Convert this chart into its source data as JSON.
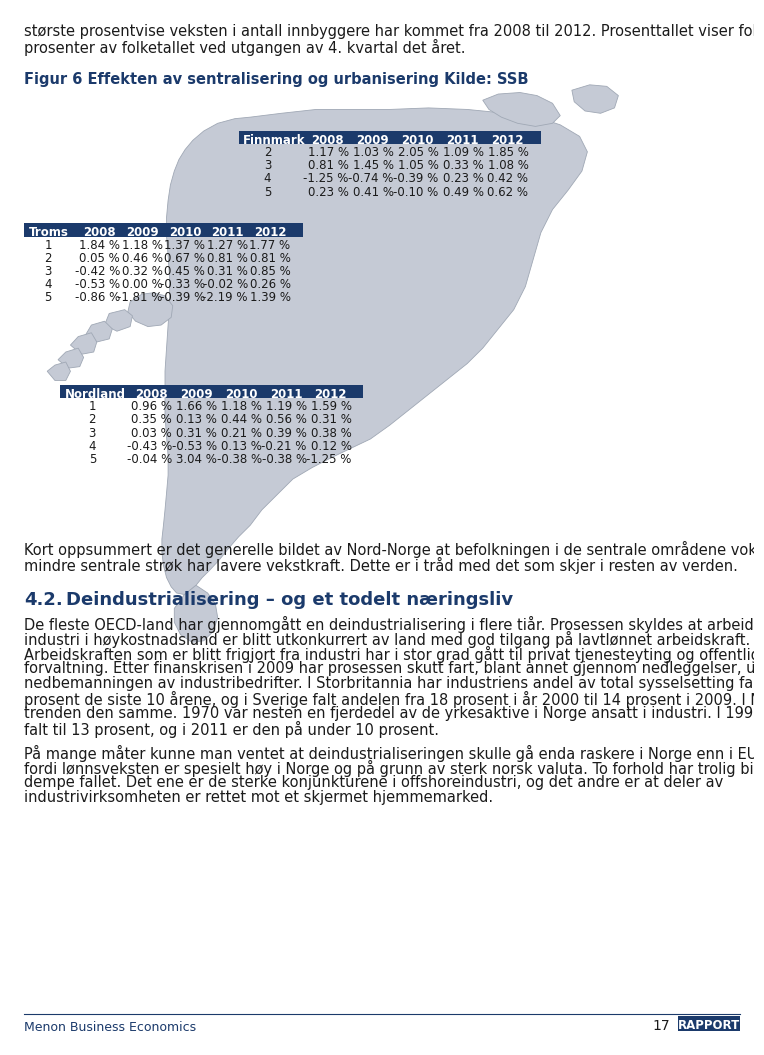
{
  "page_text_top_line1": "største prosentvise veksten i antall innbyggere har kommet fra 2008 til 2012. Prosenttallet viser folkevekst i",
  "page_text_top_line2": "prosenter av folketallet ved utgangen av 4. kvartal det året.",
  "fig_label": "Figur 6 Effekten av sentralisering og urbanisering Kilde: SSB",
  "finnmark_header": [
    "Finnmark",
    "2008",
    "2009",
    "2010",
    "2011",
    "2012"
  ],
  "finnmark_data": [
    [
      "2",
      "1.17 %",
      "1.03 %",
      "2.05 %",
      "1.09 %",
      "1.85 %"
    ],
    [
      "3",
      "0.81 %",
      "1.45 %",
      "1.05 %",
      "0.33 %",
      "1.08 %"
    ],
    [
      "4",
      "-1.25 %",
      "-0.74 %",
      "-0.39 %",
      "0.23 %",
      "0.42 %"
    ],
    [
      "5",
      "0.23 %",
      "0.41 %",
      "-0.10 %",
      "0.49 %",
      "0.62 %"
    ]
  ],
  "troms_header": [
    "Troms",
    "2008",
    "2009",
    "2010",
    "2011",
    "2012"
  ],
  "troms_data": [
    [
      "1",
      "1.84 %",
      "1.18 %",
      "1.37 %",
      "1.27 %",
      "1.77 %"
    ],
    [
      "2",
      "0.05 %",
      "0.46 %",
      "0.67 %",
      "0.81 %",
      "0.81 %"
    ],
    [
      "3",
      "-0.42 %",
      "0.32 %",
      "0.45 %",
      "0.31 %",
      "0.85 %"
    ],
    [
      "4",
      "-0.53 %",
      "0.00 %",
      "-0.33 %",
      "-0.02 %",
      "0.26 %"
    ],
    [
      "5",
      "-0.86 %",
      "-1.81 %",
      "-0.39 %",
      "-2.19 %",
      "1.39 %"
    ]
  ],
  "nordland_header": [
    "Nordland",
    "2008",
    "2009",
    "2010",
    "2011",
    "2012"
  ],
  "nordland_data": [
    [
      "1",
      "0.96 %",
      "1.66 %",
      "1.18 %",
      "1.19 %",
      "1.59 %"
    ],
    [
      "2",
      "0.35 %",
      "0.13 %",
      "0.44 %",
      "0.56 %",
      "0.31 %"
    ],
    [
      "3",
      "0.03 %",
      "0.31 %",
      "0.21 %",
      "0.39 %",
      "0.38 %"
    ],
    [
      "4",
      "-0.43 %",
      "-0.53 %",
      "0.13 %",
      "-0.21 %",
      "0.12 %"
    ],
    [
      "5",
      "-0.04 %",
      "3.04 %",
      "-0.38 %",
      "-0.38 %",
      "-1.25 %"
    ]
  ],
  "summary_line1": "Kort oppsummert er det generelle bildet av Nord-Norge at befolkningen i de sentrale områdene vokser, mens",
  "summary_line2": "mindre sentrale strøk har lavere vekstkraft. Dette er i tråd med det som skjer i resten av verden.",
  "section_num": "4.2.",
  "section_title": "Deindustrialisering – og et todelt næringsliv",
  "para1_lines": [
    "De fleste OECD-land har gjennomgått en deindustrialisering i flere tiår. Prosessen skyldes at arbeidsintensiv",
    "industri i høykostnadsland er blitt utkonkurrert av land med god tilgang på lavtlønnet arbeidskraft.",
    "Arbeidskraften som er blitt frigjort fra industri har i stor grad gått til privat tjenesteyting og offentlig",
    "forvaltning. Etter finanskrisen i 2009 har prosessen skutt fart, blant annet gjennom nedleggelser, utflyttinger og",
    "nedbemanningen av industribedrifter. I Storbritannia har industriens andel av total sysselsetting falt med 50",
    "prosent de siste 10 årene, og i Sverige falt andelen fra 18 prosent i år 2000 til 14 prosent i 2009. I Norge er",
    "trenden den samme. 1970 var nesten en fjerdedel av de yrkesaktive i Norge ansatt i industri. I 1995 var andelen",
    "falt til 13 prosent, og i 2011 er den på under 10 prosent."
  ],
  "para2_lines": [
    "På mange måter kunne man ventet at deindustrialiseringen skulle gå enda raskere i Norge enn i EU-landene,",
    "fordi lønnsveksten er spesielt høy i Norge og på grunn av sterk norsk valuta. To forhold har trolig bidratt til å",
    "dempe fallet. Det ene er de sterke konjunkturene i offshoreindustri, og det andre er at deler av",
    "industrivirksomheten er rettet mot et skjermet hjemmemarked."
  ],
  "footer_left": "Menon Business Economics",
  "footer_page": "17",
  "footer_tag": "RAPPORT",
  "dark_blue": "#1B3A6B",
  "body_color": "#1B1B1B",
  "map_color": "#C5CAD5",
  "map_edge": "#A0A8B5"
}
